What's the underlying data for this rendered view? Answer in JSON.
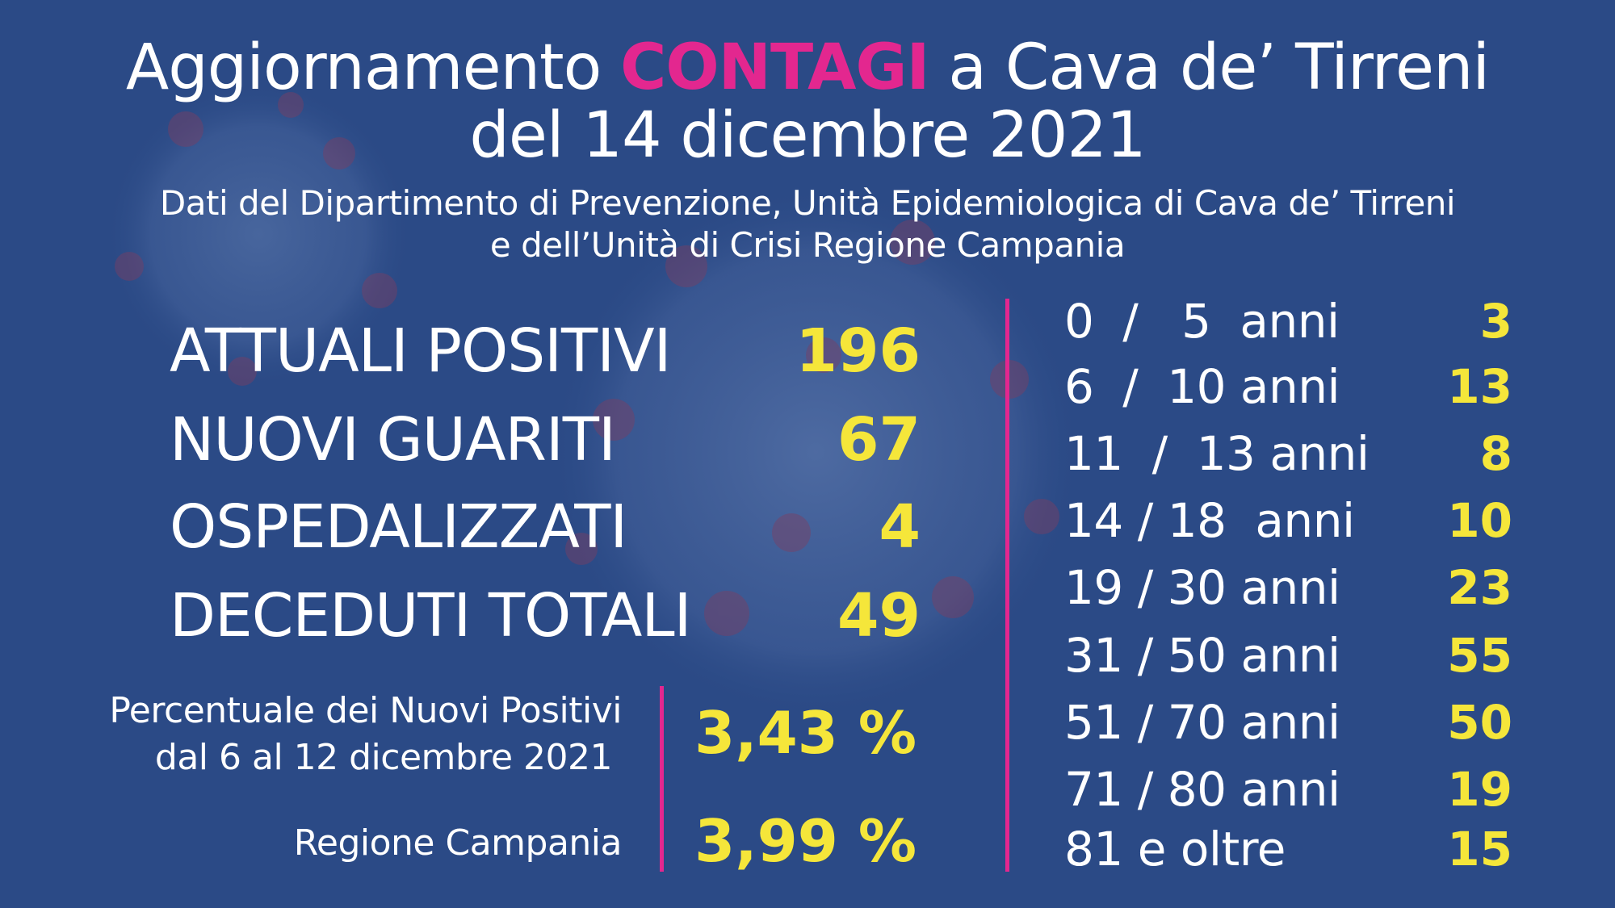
{
  "header": {
    "title_prefix": "Aggiornamento ",
    "title_accent": "CONTAGI",
    "title_suffix": " a Cava de’ Tirreni",
    "title_line2": "del 14 dicembre 2021",
    "subtitle_line1": "Dati del Dipartimento di Prevenzione, Unità Epidemiologica di Cava de’ Tirreni",
    "subtitle_line2": "e dell’Unità di Crisi Regione Campania"
  },
  "stats": [
    {
      "label": "ATTUALI POSITIVI",
      "value": "196"
    },
    {
      "label": "NUOVI GUARITI",
      "value": "67"
    },
    {
      "label": "OSPEDALIZZATI",
      "value": "4"
    },
    {
      "label": "DECEDUTI TOTALI",
      "value": "49"
    }
  ],
  "percent": {
    "local_label_line1": "Percentuale dei Nuovi Positivi",
    "local_label_line2": "dal 6 al 12 dicembre 2021",
    "local_value": "3,43 %",
    "region_label": "Regione Campania",
    "region_value": "3,99 %"
  },
  "ages": [
    {
      "label": "0  /   5  anni",
      "value": "3"
    },
    {
      "label": "6  /  10 anni",
      "value": "13"
    },
    {
      "label": "11  /  13 anni",
      "value": "8"
    },
    {
      "label": "14 / 18  anni",
      "value": "10"
    },
    {
      "label": "19 / 30 anni",
      "value": "23"
    },
    {
      "label": "31 / 50 anni",
      "value": "55"
    },
    {
      "label": "51 / 70 anni",
      "value": "50"
    },
    {
      "label": "71 / 80 anni",
      "value": "19"
    },
    {
      "label": "81 e oltre",
      "value": "15"
    }
  ],
  "colors": {
    "background": "#2b4a86",
    "accent": "#e3278f",
    "highlight": "#f5e63a",
    "text": "#ffffff"
  },
  "icons": {
    "background_image": "coronavirus-illustration"
  }
}
